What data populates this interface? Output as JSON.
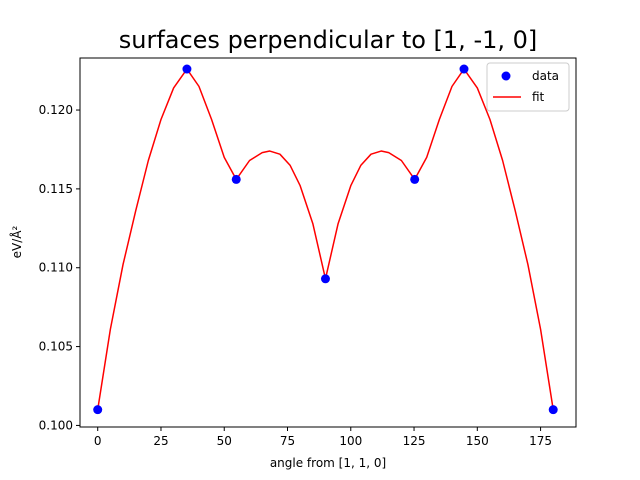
{
  "chart_data": {
    "type": "line",
    "title": "surfaces perpendicular to [1, -1, 0]",
    "xlabel": "angle from [1, 1, 0]",
    "ylabel": "eV/Å²",
    "xlim": [
      -7,
      189
    ],
    "ylim": [
      0.0999,
      0.1233
    ],
    "xticks": [
      0,
      25,
      50,
      75,
      100,
      125,
      150,
      175
    ],
    "yticks": [
      0.1,
      0.105,
      0.11,
      0.115,
      0.12
    ],
    "ytick_labels": [
      "0.100",
      "0.105",
      "0.110",
      "0.115",
      "0.120"
    ],
    "grid": false,
    "legend_position": "top-right",
    "series": [
      {
        "name": "data",
        "style": "markers",
        "color": "#0000ff",
        "x": [
          0,
          35.26,
          54.74,
          90,
          125.26,
          144.74,
          180
        ],
        "y": [
          0.101,
          0.1226,
          0.1156,
          0.1093,
          0.1156,
          0.1226,
          0.101
        ]
      },
      {
        "name": "fit",
        "style": "line",
        "color": "#ff0000",
        "x": [
          0,
          5,
          10,
          15,
          20,
          25,
          30,
          35.26,
          40,
          45,
          50,
          54.74,
          60,
          65,
          68,
          72,
          76,
          80,
          85,
          90,
          95,
          100,
          104,
          108,
          112,
          115,
          120,
          125.26,
          130,
          135,
          140,
          144.74,
          150,
          155,
          160,
          165,
          170,
          175,
          180
        ],
        "y": [
          0.101,
          0.1061,
          0.1102,
          0.1136,
          0.1168,
          0.1194,
          0.1214,
          0.1226,
          0.1215,
          0.1194,
          0.117,
          0.1156,
          0.1168,
          0.1173,
          0.1174,
          0.1172,
          0.1165,
          0.1152,
          0.1128,
          0.1093,
          0.1128,
          0.1152,
          0.1165,
          0.1172,
          0.1174,
          0.1173,
          0.1168,
          0.1156,
          0.117,
          0.1194,
          0.1215,
          0.1226,
          0.1214,
          0.1194,
          0.1168,
          0.1136,
          0.1102,
          0.1061,
          0.101
        ]
      }
    ]
  }
}
